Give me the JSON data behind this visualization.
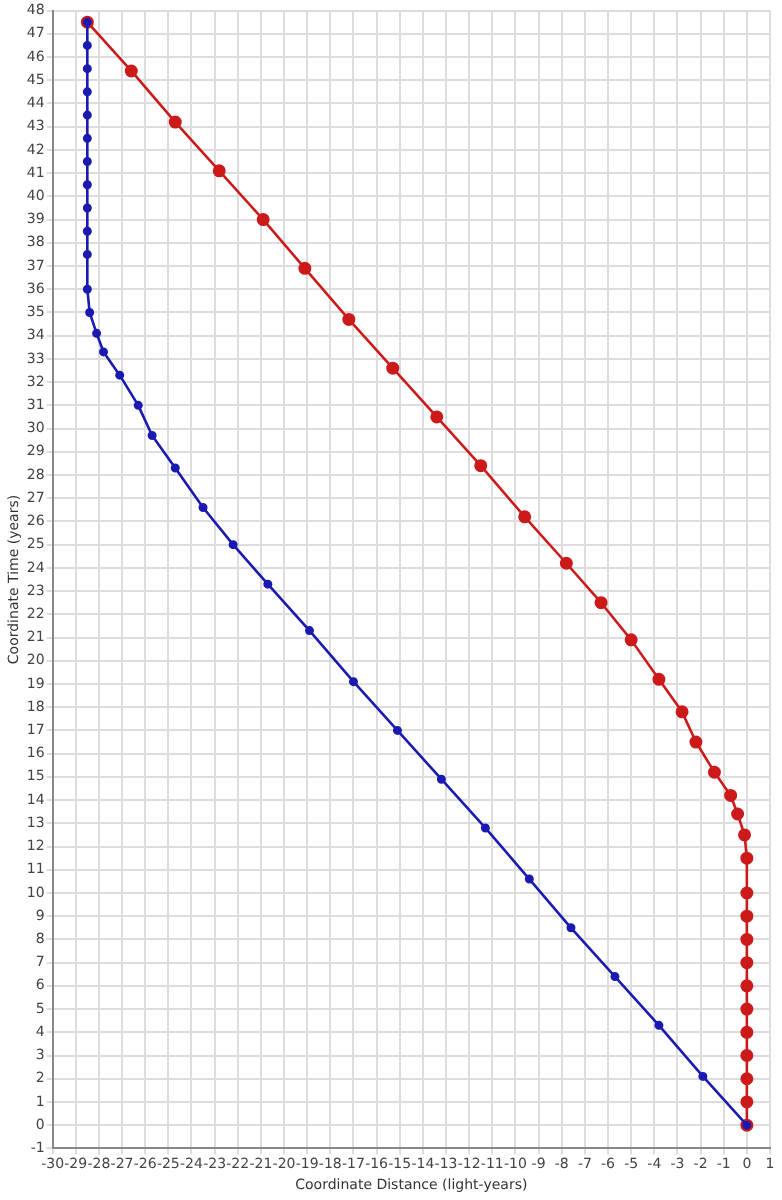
{
  "chart_data": {
    "type": "line",
    "xlabel": "Coordinate Distance (light-years)",
    "ylabel": "Coordinate Time (years)",
    "xlim": [
      -30,
      1
    ],
    "xticks": [
      -30,
      -29,
      -28,
      -27,
      -26,
      -25,
      -24,
      -23,
      -22,
      -21,
      -20,
      -19,
      -18,
      -17,
      -16,
      -15,
      -14,
      -13,
      -12,
      -11,
      -10,
      -9,
      -8,
      -7,
      -6,
      -5,
      -4,
      -3,
      -2,
      -1,
      0,
      1
    ],
    "ylim": [
      -1,
      48
    ],
    "yticks": [
      -1,
      0,
      1,
      2,
      3,
      4,
      5,
      6,
      7,
      8,
      9,
      10,
      11,
      12,
      13,
      14,
      15,
      16,
      17,
      18,
      19,
      20,
      21,
      22,
      23,
      24,
      25,
      26,
      27,
      28,
      29,
      30,
      31,
      32,
      33,
      34,
      35,
      36,
      37,
      38,
      39,
      40,
      41,
      42,
      43,
      44,
      45,
      46,
      47,
      48
    ],
    "grid": true,
    "legend": false,
    "marker": "circle",
    "line_style": "solid",
    "series": [
      {
        "color": "#1a1ab0",
        "x": [
          0,
          -1.9,
          -3.8,
          -5.7,
          -7.6,
          -9.4,
          -11.3,
          -13.2,
          -15.1,
          -17.0,
          -18.9,
          -20.7,
          -22.2,
          -23.5,
          -24.7,
          -25.7,
          -26.3,
          -27.1,
          -27.8,
          -28.1,
          -28.4,
          -28.5,
          -28.5,
          -28.5,
          -28.5,
          -28.5,
          -28.5,
          -28.5,
          -28.5,
          -28.5,
          -28.5,
          -28.5,
          -28.5
        ],
        "values": [
          0,
          2.1,
          4.3,
          6.4,
          8.5,
          10.6,
          12.8,
          14.9,
          17.0,
          19.1,
          21.3,
          23.3,
          25.0,
          26.6,
          28.3,
          29.7,
          31.0,
          32.3,
          33.3,
          34.1,
          35.0,
          36.0,
          37.5,
          38.5,
          39.5,
          40.5,
          41.5,
          42.5,
          43.5,
          44.5,
          45.5,
          46.5,
          47.5
        ]
      },
      {
        "color": "#cc1a1a",
        "x": [
          -28.5,
          -26.6,
          -24.7,
          -22.8,
          -20.9,
          -19.1,
          -17.2,
          -15.3,
          -13.4,
          -11.5,
          -9.6,
          -7.8,
          -6.3,
          -5.0,
          -3.8,
          -2.8,
          -2.2,
          -1.4,
          -0.7,
          -0.4,
          -0.1,
          0,
          0,
          0,
          0,
          0,
          0,
          0,
          0,
          0,
          0,
          0,
          0
        ],
        "values": [
          47.5,
          45.4,
          43.2,
          41.1,
          39.0,
          36.9,
          34.7,
          32.6,
          30.5,
          28.4,
          26.2,
          24.2,
          22.5,
          20.9,
          19.2,
          17.8,
          16.5,
          15.2,
          14.2,
          13.4,
          12.5,
          11.5,
          10,
          9,
          8,
          7,
          6,
          5,
          4,
          3,
          2,
          1,
          0
        ]
      }
    ]
  }
}
